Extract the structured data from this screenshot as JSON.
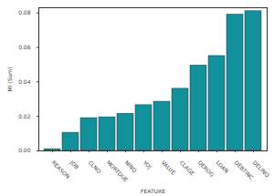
{
  "chart_data": {
    "type": "bar",
    "x_label": "FEATURE",
    "y_label": "MI (Sum)",
    "categories": [
      "REASON",
      "JOB",
      "CLNO",
      "MORTDUE",
      "NINQ",
      "YOJ",
      "VALUE",
      "CLAGE",
      "DEROG",
      "LOAN",
      "DEBTINC",
      "DELINQ"
    ],
    "values": [
      0.001,
      0.0105,
      0.019,
      0.0195,
      0.0215,
      0.0265,
      0.0285,
      0.036,
      0.0495,
      0.055,
      0.079,
      0.081
    ],
    "color": "#10919b",
    "ylim": [
      0,
      0.083
    ],
    "yticks": [
      {
        "value": 0,
        "label": "0.00"
      },
      {
        "value": 0.02,
        "label": "0.02"
      },
      {
        "value": 0.04,
        "label": "0.04"
      },
      {
        "value": 0.06,
        "label": "0.06"
      },
      {
        "value": 0.08,
        "label": "0.08"
      }
    ],
    "grid": false
  }
}
